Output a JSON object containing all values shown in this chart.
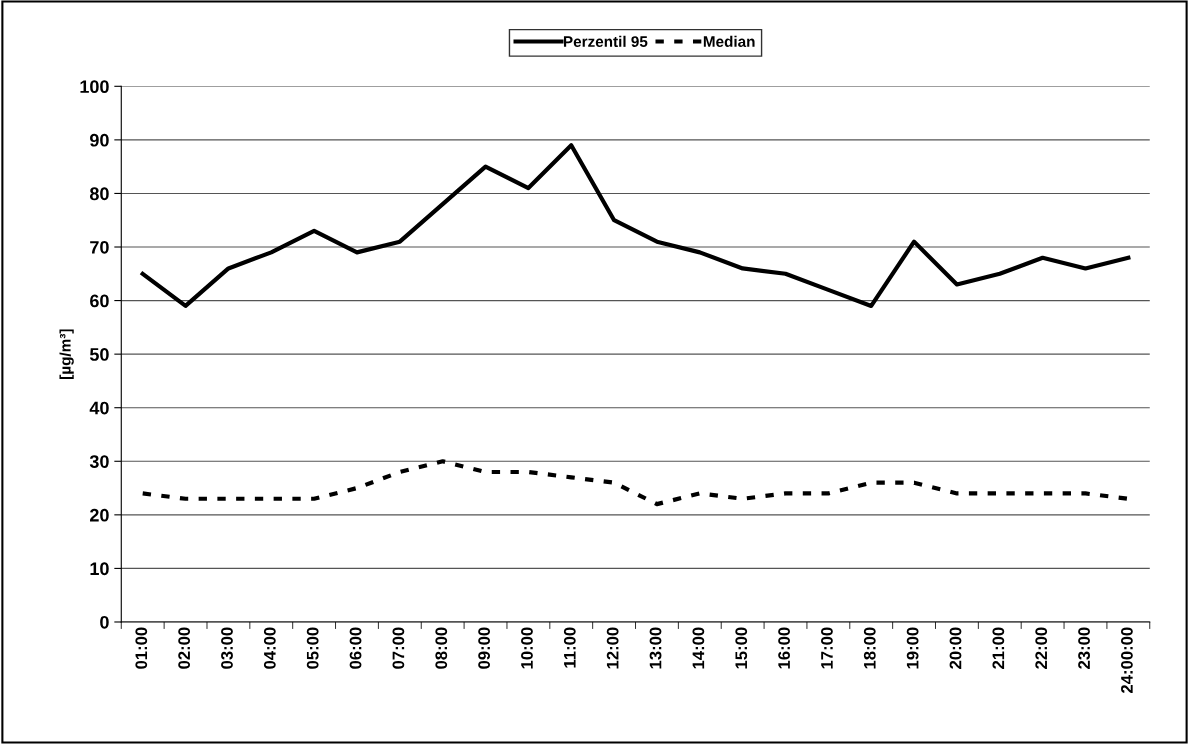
{
  "chart_data": {
    "type": "line",
    "ylabel": "[µg/m³]",
    "categories": [
      "01:00",
      "02:00",
      "03:00",
      "04:00",
      "05:00",
      "06:00",
      "07:00",
      "08:00",
      "09:00",
      "10:00",
      "11:00",
      "12:00",
      "13:00",
      "14:00",
      "15:00",
      "16:00",
      "17:00",
      "18:00",
      "19:00",
      "20:00",
      "21:00",
      "22:00",
      "23:00",
      "24:00:00"
    ],
    "series": [
      {
        "name": "Perzentil 95",
        "color": "#000000",
        "line_style": "solid",
        "values": [
          65,
          59,
          66,
          69,
          73,
          69,
          71,
          78,
          85,
          81,
          89,
          75,
          71,
          69,
          66,
          65,
          62,
          59,
          71,
          63,
          65,
          68,
          66,
          68
        ]
      },
      {
        "name": "Median",
        "color": "#000000",
        "line_style": "dotted",
        "values": [
          24,
          23,
          23,
          23,
          23,
          25,
          28,
          30,
          28,
          28,
          27,
          26,
          22,
          24,
          23,
          24,
          24,
          26,
          26,
          24,
          24,
          24,
          24,
          23
        ]
      }
    ],
    "ylim": [
      0,
      100
    ],
    "yticks": [
      0,
      10,
      20,
      30,
      40,
      50,
      60,
      70,
      80,
      90,
      100
    ],
    "grid": "y",
    "legend": "top",
    "marker": "none"
  }
}
